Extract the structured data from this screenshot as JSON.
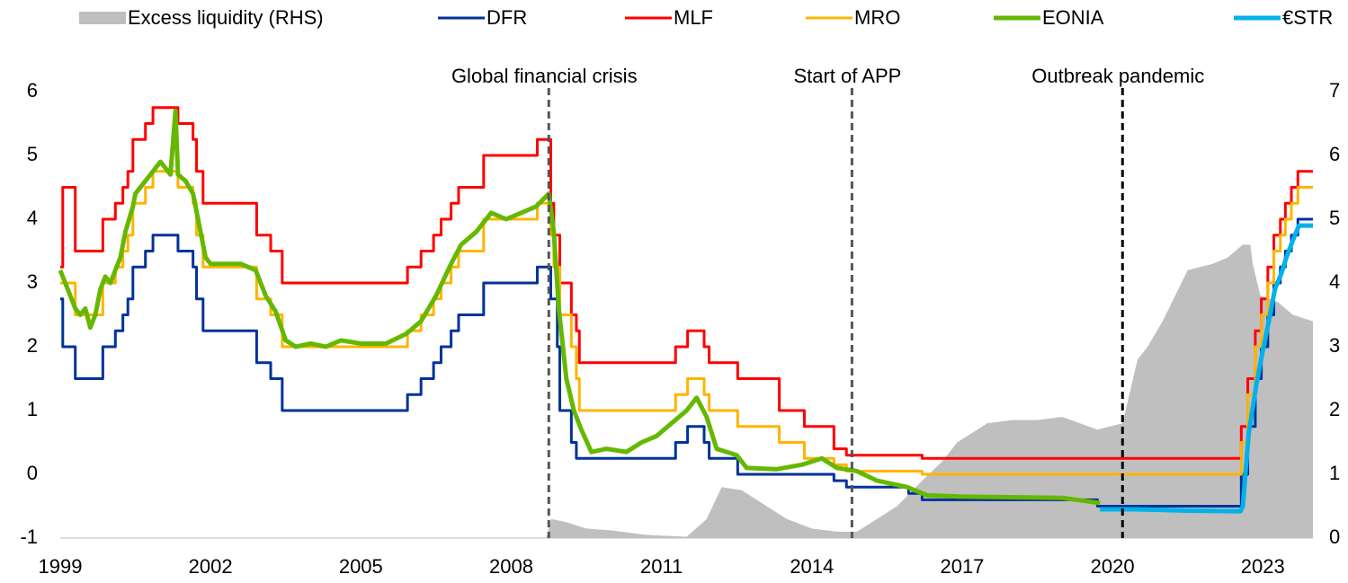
{
  "chart_data": {
    "type": "line",
    "xlim": [
      1999,
      2024
    ],
    "xticks": [
      1999,
      2002,
      2005,
      2008,
      2011,
      2014,
      2017,
      2020,
      2023
    ],
    "ylim": [
      -1,
      6
    ],
    "yticks": [
      -1,
      0,
      1,
      2,
      3,
      4,
      5,
      6
    ],
    "y2lim": [
      0,
      7
    ],
    "y2ticks": [
      0,
      1,
      2,
      3,
      4,
      5,
      6,
      7
    ],
    "annotations": [
      {
        "text": "Global financial crisis",
        "x": 2008.75
      },
      {
        "text": "Start of APP",
        "x": 2014.8
      },
      {
        "text": "Outbreak pandemic",
        "x": 2020.2
      }
    ],
    "series": [
      {
        "name": "Excess liquidity (RHS)",
        "type": "area",
        "axis": "y2",
        "color": "#bfbfbf",
        "x": [
          1999,
          2008.7,
          2008.8,
          2009.1,
          2009.5,
          2010.0,
          2010.7,
          2011.5,
          2011.9,
          2012.2,
          2012.6,
          2013.0,
          2013.5,
          2014.0,
          2014.5,
          2014.9,
          2015.3,
          2015.7,
          2016.2,
          2016.6,
          2016.9,
          2017.5,
          2018.0,
          2018.5,
          2019.0,
          2019.7,
          2020.2,
          2020.5,
          2020.7,
          2021.0,
          2021.5,
          2022.0,
          2022.3,
          2022.6,
          2022.75,
          2022.8,
          2022.95,
          2023.3,
          2023.6,
          2024
        ],
        "values": [
          0,
          0,
          0.3,
          0.25,
          0.15,
          0.12,
          0.05,
          0.02,
          0.3,
          0.8,
          0.75,
          0.55,
          0.3,
          0.15,
          0.1,
          0.1,
          0.3,
          0.5,
          0.9,
          1.2,
          1.5,
          1.8,
          1.85,
          1.85,
          1.9,
          1.7,
          1.8,
          2.8,
          3.0,
          3.4,
          4.2,
          4.3,
          4.4,
          4.6,
          4.6,
          4.3,
          3.8,
          3.7,
          3.5,
          3.4
        ]
      },
      {
        "name": "DFR",
        "color": "#003299",
        "x": [
          1999,
          1999.05,
          1999.05,
          1999.3,
          1999.3,
          1999.85,
          1999.85,
          2000.1,
          2000.1,
          2000.25,
          2000.25,
          2000.35,
          2000.35,
          2000.45,
          2000.45,
          2000.7,
          2000.7,
          2000.85,
          2000.85,
          2001.35,
          2001.35,
          2001.65,
          2001.65,
          2001.72,
          2001.72,
          2001.85,
          2001.85,
          2002.92,
          2002.92,
          2003.2,
          2003.2,
          2003.43,
          2003.43,
          2005.93,
          2005.93,
          2006.2,
          2006.2,
          2006.45,
          2006.45,
          2006.6,
          2006.6,
          2006.8,
          2006.8,
          2006.95,
          2006.95,
          2007.45,
          2007.45,
          2008.52,
          2008.52,
          2008.79,
          2008.79,
          2008.92,
          2008.92,
          2008.97,
          2008.97,
          2009.2,
          2009.2,
          2009.3,
          2009.3,
          2011.28,
          2011.28,
          2011.52,
          2011.52,
          2011.85,
          2011.85,
          2011.95,
          2011.95,
          2012.52,
          2012.52,
          2014.44,
          2014.44,
          2014.69,
          2014.69,
          2015.93,
          2015.93,
          2016.2,
          2016.2,
          2019.7,
          2019.7,
          2022.57,
          2022.57,
          2022.7,
          2022.7,
          2022.85,
          2022.85,
          2022.97,
          2022.97,
          2023.1,
          2023.1,
          2023.22,
          2023.22,
          2023.35,
          2023.35,
          2023.45,
          2023.45,
          2023.57,
          2023.57,
          2023.7,
          2023.7,
          2024
        ],
        "values": [
          2.75,
          2.75,
          2,
          2,
          1.5,
          1.5,
          2,
          2,
          2.25,
          2.25,
          2.5,
          2.5,
          2.75,
          2.75,
          3.25,
          3.25,
          3.5,
          3.5,
          3.75,
          3.75,
          3.5,
          3.5,
          3.25,
          3.25,
          2.75,
          2.75,
          2.25,
          2.25,
          1.75,
          1.75,
          1.5,
          1.5,
          1,
          1,
          1.25,
          1.25,
          1.5,
          1.5,
          1.75,
          1.75,
          2,
          2,
          2.25,
          2.25,
          2.5,
          2.5,
          3,
          3,
          3.25,
          3.25,
          2.75,
          2.75,
          2,
          2,
          1,
          1,
          0.5,
          0.5,
          0.25,
          0.25,
          0.5,
          0.5,
          0.75,
          0.75,
          0.5,
          0.5,
          0.25,
          0.25,
          0,
          0,
          -0.1,
          -0.1,
          -0.2,
          -0.2,
          -0.3,
          -0.3,
          -0.4,
          -0.4,
          -0.5,
          -0.5,
          0,
          0,
          0.75,
          0.75,
          1.5,
          1.5,
          2,
          2,
          2.5,
          2.5,
          3,
          3,
          3.25,
          3.25,
          3.5,
          3.5,
          3.75,
          3.75,
          4,
          4
        ]
      },
      {
        "name": "MLF",
        "color": "#ff0000",
        "x": [
          1999,
          1999.05,
          1999.05,
          1999.3,
          1999.3,
          1999.85,
          1999.85,
          2000.1,
          2000.1,
          2000.25,
          2000.25,
          2000.35,
          2000.35,
          2000.45,
          2000.45,
          2000.7,
          2000.7,
          2000.85,
          2000.85,
          2001.35,
          2001.35,
          2001.65,
          2001.65,
          2001.72,
          2001.72,
          2001.85,
          2001.85,
          2002.92,
          2002.92,
          2003.2,
          2003.2,
          2003.43,
          2003.43,
          2005.93,
          2005.93,
          2006.2,
          2006.2,
          2006.45,
          2006.45,
          2006.6,
          2006.6,
          2006.8,
          2006.8,
          2006.95,
          2006.95,
          2007.45,
          2007.45,
          2008.52,
          2008.52,
          2008.79,
          2008.79,
          2008.85,
          2008.85,
          2008.97,
          2008.97,
          2009.2,
          2009.2,
          2009.3,
          2009.3,
          2009.36,
          2009.36,
          2011.28,
          2011.28,
          2011.52,
          2011.52,
          2011.85,
          2011.85,
          2011.95,
          2011.95,
          2012.52,
          2012.52,
          2013.35,
          2013.35,
          2013.85,
          2013.85,
          2014.44,
          2014.44,
          2014.69,
          2014.69,
          2016.2,
          2016.2,
          2022.57,
          2022.57,
          2022.7,
          2022.7,
          2022.85,
          2022.85,
          2022.97,
          2022.97,
          2023.1,
          2023.1,
          2023.22,
          2023.22,
          2023.35,
          2023.35,
          2023.45,
          2023.45,
          2023.57,
          2023.57,
          2023.7,
          2023.7,
          2024
        ],
        "values": [
          3.25,
          3.25,
          4.5,
          4.5,
          3.5,
          3.5,
          4,
          4,
          4.25,
          4.25,
          4.5,
          4.5,
          4.75,
          4.75,
          5.25,
          5.25,
          5.5,
          5.5,
          5.75,
          5.75,
          5.5,
          5.5,
          5.25,
          5.25,
          4.75,
          4.75,
          4.25,
          4.25,
          3.75,
          3.75,
          3.5,
          3.5,
          3,
          3,
          3.25,
          3.25,
          3.5,
          3.5,
          3.75,
          3.75,
          4,
          4,
          4.25,
          4.25,
          4.5,
          4.5,
          5,
          5,
          5.25,
          5.25,
          4.25,
          4.25,
          3.75,
          3.75,
          3,
          3,
          2.5,
          2.5,
          2.25,
          2.25,
          1.75,
          1.75,
          2,
          2,
          2.25,
          2.25,
          2,
          2,
          1.75,
          1.75,
          1.5,
          1.5,
          1,
          1,
          0.75,
          0.75,
          0.4,
          0.4,
          0.3,
          0.3,
          0.25,
          0.25,
          0.75,
          0.75,
          1.5,
          1.5,
          2.25,
          2.25,
          2.75,
          2.75,
          3.25,
          3.25,
          3.75,
          3.75,
          4,
          4,
          4.25,
          4.25,
          4.5,
          4.5,
          4.75,
          4.75
        ]
      },
      {
        "name": "MRO",
        "color": "#ffb400",
        "x": [
          1999,
          1999.3,
          1999.3,
          1999.85,
          1999.85,
          2000.1,
          2000.1,
          2000.25,
          2000.25,
          2000.35,
          2000.35,
          2000.45,
          2000.45,
          2000.7,
          2000.7,
          2000.85,
          2000.85,
          2001.35,
          2001.35,
          2001.65,
          2001.65,
          2001.72,
          2001.72,
          2001.85,
          2001.85,
          2002.92,
          2002.92,
          2003.2,
          2003.2,
          2003.43,
          2003.43,
          2005.93,
          2005.93,
          2006.2,
          2006.2,
          2006.45,
          2006.45,
          2006.6,
          2006.6,
          2006.8,
          2006.8,
          2006.95,
          2006.95,
          2007.45,
          2007.45,
          2008.52,
          2008.52,
          2008.79,
          2008.79,
          2008.85,
          2008.85,
          2008.97,
          2008.97,
          2009.2,
          2009.2,
          2009.3,
          2009.3,
          2009.36,
          2009.36,
          2011.28,
          2011.28,
          2011.52,
          2011.52,
          2011.85,
          2011.85,
          2011.95,
          2011.95,
          2012.52,
          2012.52,
          2013.35,
          2013.35,
          2013.85,
          2013.85,
          2014.44,
          2014.44,
          2014.69,
          2014.69,
          2016.2,
          2016.2,
          2022.57,
          2022.57,
          2022.7,
          2022.7,
          2022.85,
          2022.85,
          2022.97,
          2022.97,
          2023.1,
          2023.1,
          2023.22,
          2023.22,
          2023.35,
          2023.35,
          2023.45,
          2023.45,
          2023.57,
          2023.57,
          2023.7,
          2023.7,
          2024
        ],
        "values": [
          3,
          3,
          2.5,
          2.5,
          3,
          3,
          3.25,
          3.25,
          3.5,
          3.5,
          3.75,
          3.75,
          4.25,
          4.25,
          4.5,
          4.5,
          4.75,
          4.75,
          4.5,
          4.5,
          4.25,
          4.25,
          3.75,
          3.75,
          3.25,
          3.25,
          2.75,
          2.75,
          2.5,
          2.5,
          2,
          2,
          2.25,
          2.25,
          2.5,
          2.5,
          2.75,
          2.75,
          3,
          3,
          3.25,
          3.25,
          3.5,
          3.5,
          4,
          4,
          4.25,
          4.25,
          3.75,
          3.75,
          3.25,
          3.25,
          2.5,
          2.5,
          2,
          2,
          1.5,
          1.5,
          1,
          1,
          1.25,
          1.25,
          1.5,
          1.5,
          1.25,
          1.25,
          1,
          1,
          0.75,
          0.75,
          0.5,
          0.5,
          0.25,
          0.25,
          0.15,
          0.15,
          0.05,
          0.05,
          0,
          0,
          0.5,
          0.5,
          1.25,
          1.25,
          2,
          2,
          2.5,
          2.5,
          3,
          3,
          3.5,
          3.5,
          3.75,
          3.75,
          4,
          4,
          4.25,
          4.25,
          4.5,
          4.5
        ]
      },
      {
        "name": "EONIA",
        "color": "#65b800",
        "x": [
          1999,
          1999.1,
          1999.2,
          1999.3,
          1999.4,
          1999.5,
          1999.6,
          1999.7,
          1999.8,
          1999.9,
          2000.0,
          2000.2,
          2000.3,
          2000.45,
          2000.5,
          2000.7,
          2000.9,
          2001.0,
          2001.2,
          2001.3,
          2001.35,
          2001.5,
          2001.65,
          2001.8,
          2001.9,
          2002.0,
          2002.3,
          2002.6,
          2002.9,
          2003.1,
          2003.3,
          2003.5,
          2003.7,
          2004.0,
          2004.3,
          2004.6,
          2005.0,
          2005.5,
          2005.9,
          2006.2,
          2006.5,
          2006.8,
          2007.0,
          2007.3,
          2007.6,
          2007.9,
          2008.2,
          2008.5,
          2008.75,
          2008.85,
          2008.95,
          2009.1,
          2009.25,
          2009.4,
          2009.6,
          2009.9,
          2010.3,
          2010.6,
          2010.9,
          2011.2,
          2011.5,
          2011.7,
          2011.9,
          2012.1,
          2012.5,
          2012.7,
          2013.3,
          2013.8,
          2014.2,
          2014.5,
          2014.9,
          2015.3,
          2015.9,
          2016.3,
          2017.0,
          2018.0,
          2019.0,
          2019.75
        ],
        "values": [
          3.2,
          3.0,
          2.8,
          2.6,
          2.5,
          2.6,
          2.3,
          2.5,
          2.9,
          3.1,
          3.0,
          3.4,
          3.8,
          4.2,
          4.4,
          4.6,
          4.8,
          4.9,
          4.7,
          5.7,
          4.7,
          4.6,
          4.4,
          3.8,
          3.4,
          3.3,
          3.3,
          3.3,
          3.2,
          2.8,
          2.55,
          2.1,
          2.0,
          2.05,
          2.0,
          2.1,
          2.05,
          2.05,
          2.2,
          2.4,
          2.8,
          3.3,
          3.6,
          3.8,
          4.1,
          4.0,
          4.1,
          4.2,
          4.4,
          3.8,
          2.6,
          1.5,
          1.0,
          0.7,
          0.35,
          0.4,
          0.35,
          0.5,
          0.6,
          0.8,
          1.0,
          1.2,
          0.9,
          0.4,
          0.3,
          0.1,
          0.08,
          0.15,
          0.25,
          0.1,
          0.05,
          -0.1,
          -0.2,
          -0.33,
          -0.35,
          -0.36,
          -0.37,
          -0.45
        ]
      },
      {
        "name": "€STR",
        "color": "#00b1ea",
        "x": [
          2019.75,
          2020.5,
          2021.5,
          2022.55,
          2022.6,
          2022.72,
          2022.87,
          2022.99,
          2023.12,
          2023.24,
          2023.37,
          2023.47,
          2023.59,
          2023.72,
          2024
        ],
        "values": [
          -0.55,
          -0.55,
          -0.57,
          -0.58,
          -0.51,
          0.65,
          1.4,
          1.9,
          2.4,
          2.9,
          3.15,
          3.4,
          3.65,
          3.9,
          3.9
        ]
      }
    ]
  }
}
